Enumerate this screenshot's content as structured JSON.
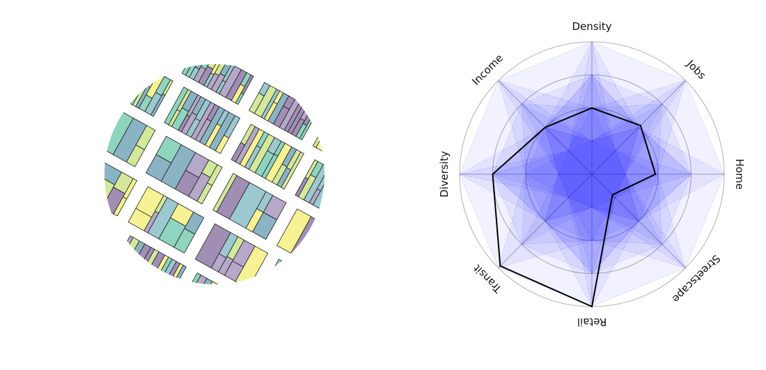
{
  "chart_data": [
    {
      "type": "map",
      "palette": [
        "#a18eb4",
        "#8ab4c4",
        "#8fd4be",
        "#d4e89c",
        "#f6f294",
        "#b5a8c8",
        "#9cc8cf"
      ],
      "edge_color": "#1a1a1a"
    },
    {
      "type": "radar",
      "axes": [
        "Density",
        "Jobs",
        "Home",
        "Streetscape",
        "Retail",
        "Transit",
        "Diversity",
        "Income"
      ],
      "rlim": [
        0,
        1
      ],
      "ring_values": [
        0.5,
        0.75,
        1.0
      ],
      "highlight": {
        "values": [
          0.5,
          0.52,
          0.48,
          0.22,
          1.0,
          0.98,
          0.75,
          0.5
        ],
        "color": "#000000"
      },
      "background_profiles": [
        [
          1.0,
          1.0,
          1.0,
          1.0,
          1.0,
          1.0,
          1.0,
          1.0
        ],
        [
          0.75,
          0.75,
          0.75,
          0.75,
          0.75,
          0.75,
          0.75,
          0.75
        ],
        [
          0.75,
          0.25,
          0.75,
          0.25,
          0.75,
          0.25,
          0.75,
          0.25
        ],
        [
          0.25,
          0.75,
          0.25,
          0.75,
          0.25,
          0.75,
          0.25,
          0.75
        ],
        [
          1.0,
          0.5,
          1.0,
          0.5,
          1.0,
          0.5,
          1.0,
          0.5
        ],
        [
          0.5,
          1.0,
          0.5,
          1.0,
          0.5,
          1.0,
          0.5,
          1.0
        ],
        [
          0.25,
          0.25,
          0.25,
          0.25,
          0.25,
          0.25,
          0.25,
          0.25
        ],
        [
          0.5,
          0.25,
          0.5,
          0.25,
          0.5,
          0.25,
          0.5,
          0.25
        ],
        [
          0.25,
          0.5,
          0.25,
          0.5,
          0.25,
          0.5,
          0.25,
          0.5
        ],
        [
          0.5,
          0.5,
          0.5,
          0.5,
          0.5,
          0.5,
          0.5,
          0.5
        ],
        [
          0.75,
          0.5,
          0.25,
          0.5,
          0.75,
          0.5,
          0.25,
          0.5
        ],
        [
          0.25,
          0.5,
          0.75,
          0.5,
          0.25,
          0.5,
          0.75,
          0.5
        ],
        [
          1.0,
          0.25,
          0.25,
          1.0,
          0.25,
          0.25,
          1.0,
          0.25
        ],
        [
          0.25,
          1.0,
          0.25,
          0.25,
          1.0,
          0.25,
          0.25,
          1.0
        ],
        [
          0.5,
          0.75,
          0.5,
          0.75,
          0.5,
          0.75,
          0.5,
          0.75
        ],
        [
          0.75,
          0.5,
          0.75,
          0.5,
          0.75,
          0.5,
          0.75,
          0.5
        ]
      ],
      "background_color": "#0000ff"
    }
  ]
}
